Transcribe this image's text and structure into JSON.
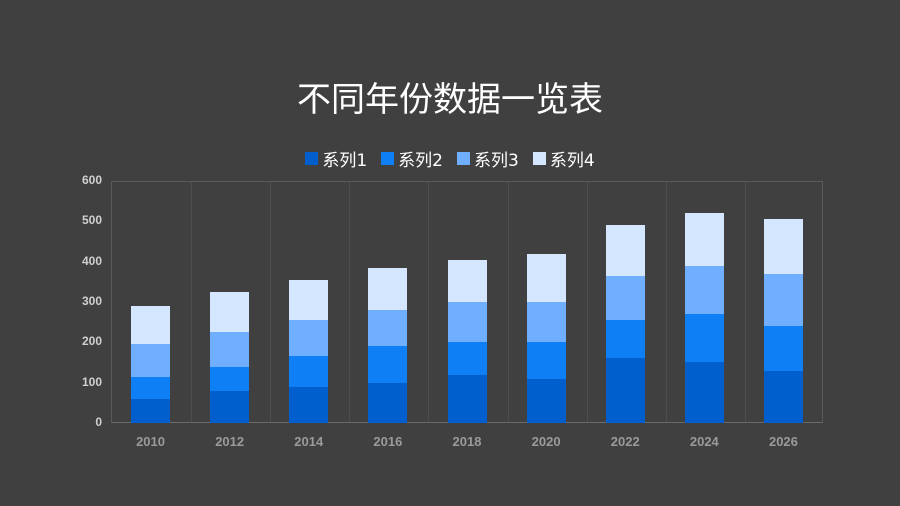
{
  "title": "不同年份数据一览表",
  "legend": [
    {
      "label": "系列1",
      "color": "#005FCC"
    },
    {
      "label": "系列2",
      "color": "#0E7FF5"
    },
    {
      "label": "系列3",
      "color": "#70AFFF"
    },
    {
      "label": "系列4",
      "color": "#D5E6FF"
    }
  ],
  "y_ticks": [
    "0",
    "100",
    "200",
    "300",
    "400",
    "500",
    "600"
  ],
  "x_ticks": [
    "2010",
    "2012",
    "2014",
    "2016",
    "2018",
    "2020",
    "2022",
    "2024",
    "2026"
  ],
  "chart_data": {
    "type": "bar",
    "stacked": true,
    "title": "不同年份数据一览表",
    "xlabel": "",
    "ylabel": "",
    "ylim": [
      0,
      600
    ],
    "grid": "vertical category separators",
    "legend_position": "top",
    "categories": [
      "2010",
      "2012",
      "2014",
      "2016",
      "2018",
      "2020",
      "2022",
      "2024",
      "2026"
    ],
    "series": [
      {
        "name": "系列1",
        "color": "#005FCC",
        "values": [
          60,
          80,
          90,
          100,
          120,
          110,
          160,
          150,
          130
        ]
      },
      {
        "name": "系列2",
        "color": "#0E7FF5",
        "values": [
          55,
          60,
          75,
          90,
          80,
          90,
          95,
          120,
          110
        ]
      },
      {
        "name": "系列3",
        "color": "#70AFFF",
        "values": [
          80,
          85,
          90,
          90,
          100,
          100,
          110,
          120,
          130
        ]
      },
      {
        "name": "系列4",
        "color": "#D5E6FF",
        "values": [
          95,
          100,
          100,
          105,
          105,
          120,
          125,
          130,
          135
        ]
      }
    ]
  }
}
